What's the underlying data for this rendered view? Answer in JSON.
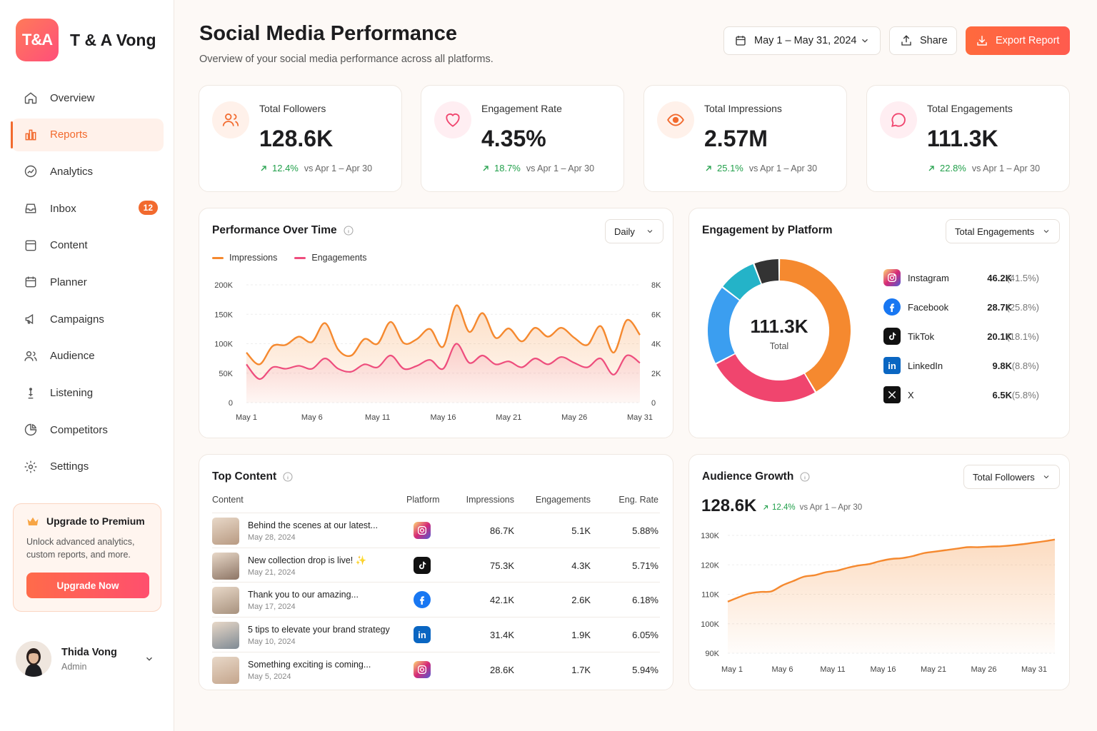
{
  "brand": {
    "logo_text": "T&A",
    "name": "T & A Vong"
  },
  "sidebar": {
    "items": [
      {
        "label": "Overview",
        "icon": "home-icon"
      },
      {
        "label": "Reports",
        "icon": "bar-chart-icon",
        "active": true
      },
      {
        "label": "Analytics",
        "icon": "analytics-icon"
      },
      {
        "label": "Inbox",
        "icon": "inbox-icon",
        "badge": "12"
      },
      {
        "label": "Content",
        "icon": "content-icon"
      },
      {
        "label": "Planner",
        "icon": "calendar-icon"
      },
      {
        "label": "Campaigns",
        "icon": "megaphone-icon"
      },
      {
        "label": "Audience",
        "icon": "users-icon"
      },
      {
        "label": "Listening",
        "icon": "listening-icon"
      },
      {
        "label": "Competitors",
        "icon": "pie-icon"
      },
      {
        "label": "Settings",
        "icon": "gear-icon"
      }
    ],
    "upgrade": {
      "title": "Upgrade to Premium",
      "text": "Unlock advanced analytics, custom reports, and more.",
      "button": "Upgrade Now"
    },
    "user": {
      "name": "Thida Vong",
      "role": "Admin"
    }
  },
  "header": {
    "title": "Social Media Performance",
    "subtitle": "Overview of your social media performance across all platforms.",
    "date_range": "May 1 – May 31, 2024",
    "share": "Share",
    "export": "Export Report"
  },
  "kpis": [
    {
      "label": "Total Followers",
      "value": "128.6K",
      "delta": "12.4%",
      "compare": "vs Apr 1 – Apr 30",
      "icon": "users-icon",
      "color": "#f26a2e",
      "bg": "#fff1ea"
    },
    {
      "label": "Engagement Rate",
      "value": "4.35%",
      "delta": "18.7%",
      "compare": "vs Apr 1 – Apr 30",
      "icon": "heart-icon",
      "color": "#f0456e",
      "bg": "#ffeef2"
    },
    {
      "label": "Total Impressions",
      "value": "2.57M",
      "delta": "25.1%",
      "compare": "vs Apr 1 – Apr 30",
      "icon": "eye-icon",
      "color": "#f26a2e",
      "bg": "#fff1ea"
    },
    {
      "label": "Total Engagements",
      "value": "111.3K",
      "delta": "22.8%",
      "compare": "vs Apr 1 – Apr 30",
      "icon": "chat-icon",
      "color": "#f0456e",
      "bg": "#ffeef2"
    }
  ],
  "performance": {
    "title": "Performance Over Time",
    "select": "Daily",
    "legend": [
      "Impressions",
      "Engagements"
    ],
    "y_left_ticks": [
      "200K",
      "150K",
      "100K",
      "50K",
      "0"
    ],
    "y_right_ticks": [
      "8K",
      "6K",
      "4K",
      "2K",
      "0"
    ],
    "x_ticks": [
      "May 1",
      "May 6",
      "May 11",
      "May 16",
      "May 21",
      "May 26",
      "May 31"
    ]
  },
  "engagement": {
    "title": "Engagement by Platform",
    "select": "Total Engagements",
    "total": "111.3K",
    "total_label": "Total",
    "platforms": [
      {
        "name": "Instagram",
        "value": "46.2K",
        "pct": "(41.5%)",
        "icon": "instagram-icon"
      },
      {
        "name": "Facebook",
        "value": "28.7K",
        "pct": "(25.8%)",
        "icon": "facebook-icon"
      },
      {
        "name": "TikTok",
        "value": "20.1K",
        "pct": "(18.1%)",
        "icon": "tiktok-icon"
      },
      {
        "name": "LinkedIn",
        "value": "9.8K",
        "pct": "(8.8%)",
        "icon": "linkedin-icon"
      },
      {
        "name": "X",
        "value": "6.5K",
        "pct": "(5.8%)",
        "icon": "x-icon"
      }
    ]
  },
  "top_content": {
    "title": "Top Content",
    "columns": [
      "Content",
      "Platform",
      "Impressions",
      "Engagements",
      "Eng. Rate"
    ],
    "rows": [
      {
        "title": "Behind the scenes at our latest...",
        "date": "May 28, 2024",
        "platform": "instagram-icon",
        "impressions": "86.7K",
        "engagements": "5.1K",
        "rate": "5.88%"
      },
      {
        "title": "New collection drop is live! ✨",
        "date": "May 21, 2024",
        "platform": "tiktok-icon",
        "impressions": "75.3K",
        "engagements": "4.3K",
        "rate": "5.71%"
      },
      {
        "title": "Thank you to our amazing...",
        "date": "May 17, 2024",
        "platform": "facebook-icon",
        "impressions": "42.1K",
        "engagements": "2.6K",
        "rate": "6.18%"
      },
      {
        "title": "5 tips to elevate your brand strategy",
        "date": "May 10, 2024",
        "platform": "linkedin-icon",
        "impressions": "31.4K",
        "engagements": "1.9K",
        "rate": "6.05%"
      },
      {
        "title": "Something exciting is coming...",
        "date": "May 5, 2024",
        "platform": "instagram-icon",
        "impressions": "28.6K",
        "engagements": "1.7K",
        "rate": "5.94%"
      }
    ]
  },
  "audience": {
    "title": "Audience Growth",
    "select": "Total Followers",
    "value": "128.6K",
    "delta": "12.4%",
    "compare": "vs Apr 1 – Apr 30",
    "y_ticks": [
      "130K",
      "120K",
      "110K",
      "100K",
      "90K"
    ],
    "x_ticks": [
      "May 1",
      "May 6",
      "May 11",
      "May 16",
      "May 21",
      "May 26",
      "May 31"
    ]
  },
  "colors": {
    "accent": "#f26a2e",
    "pink": "#f0456e",
    "blue": "#3b9ef0",
    "teal": "#24b3c8",
    "dark": "#333333",
    "green": "#22a04b"
  },
  "chart_data": [
    {
      "type": "line",
      "x": [
        1,
        2,
        3,
        4,
        5,
        6,
        7,
        8,
        9,
        10,
        11,
        12,
        13,
        14,
        15,
        16,
        17,
        18,
        19,
        20,
        21,
        22,
        23,
        24,
        25,
        26,
        27,
        28,
        29,
        30,
        31
      ],
      "series": [
        {
          "name": "Impressions",
          "axis": "left",
          "values": [
            85,
            65,
            96,
            98,
            112,
            103,
            135,
            90,
            80,
            108,
            100,
            137,
            101,
            108,
            125,
            95,
            165,
            120,
            152,
            110,
            126,
            104,
            127,
            112,
            127,
            110,
            98,
            130,
            85,
            140,
            115
          ]
        },
        {
          "name": "Engagements",
          "axis": "right",
          "values": [
            2.6,
            1.6,
            2.4,
            2.3,
            2.5,
            2.3,
            3.0,
            2.3,
            2.1,
            2.6,
            2.4,
            3.2,
            2.3,
            2.5,
            2.9,
            2.3,
            4.0,
            2.7,
            3.2,
            2.6,
            2.8,
            2.4,
            3.0,
            2.6,
            3.1,
            2.7,
            2.4,
            3.0,
            1.9,
            3.2,
            2.7
          ]
        }
      ],
      "ylim_left": [
        0,
        200
      ],
      "ylim_right": [
        0,
        8
      ]
    },
    {
      "type": "pie",
      "categories": [
        "Instagram",
        "Facebook",
        "TikTok",
        "LinkedIn",
        "X"
      ],
      "values": [
        41.5,
        25.8,
        18.1,
        8.8,
        5.8
      ]
    },
    {
      "type": "area",
      "x": [
        1,
        2,
        3,
        4,
        5,
        6,
        7,
        8,
        9,
        10,
        11,
        12,
        13,
        14,
        15,
        16,
        17,
        18,
        19,
        20,
        21,
        22,
        23,
        24,
        25,
        26,
        27,
        28,
        29,
        30,
        31
      ],
      "series": [
        {
          "name": "Total Followers",
          "values": [
            107.5,
            109,
            110.3,
            110.8,
            111,
            113,
            114.5,
            116,
            116.5,
            117.5,
            118,
            119,
            119.8,
            120.3,
            121.3,
            122,
            122.3,
            123,
            124,
            124.5,
            125,
            125.5,
            126,
            126,
            126.2,
            126.3,
            126.6,
            127,
            127.5,
            128,
            128.6
          ]
        }
      ],
      "ylim": [
        90,
        130
      ]
    }
  ]
}
